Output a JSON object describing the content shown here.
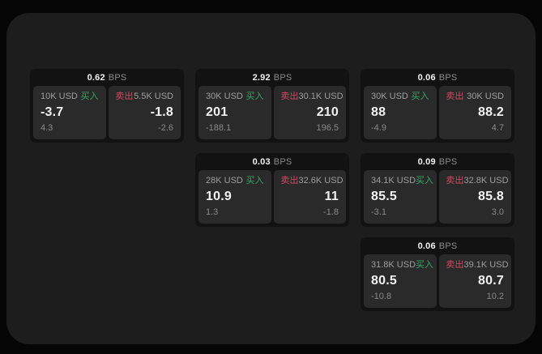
{
  "labels": {
    "bps_unit": "BPS",
    "buy": "买入",
    "sell": "卖出"
  },
  "colors": {
    "background": "#050505",
    "surface_bg": "#1d1d1d",
    "card_bg": "#121212",
    "tile_bg": "#2a2a2a",
    "buy_green": "#36a567",
    "sell_red": "#cc4a63",
    "value_white": "#f2f2f2",
    "muted_gray": "#9e9e9e",
    "faint_gray": "#8a8a8a"
  },
  "cards": [
    {
      "bps": "0.62",
      "buy": {
        "notional": "10K USD",
        "price": "-3.7",
        "delta": "4.3"
      },
      "sell": {
        "notional": "5.5K USD",
        "price": "-1.8",
        "delta": "-2.6"
      }
    },
    {
      "bps": "2.92",
      "buy": {
        "notional": "30K USD",
        "price": "201",
        "delta": "-188.1"
      },
      "sell": {
        "notional": "30.1K USD",
        "price": "210",
        "delta": "196.5"
      }
    },
    {
      "bps": "0.06",
      "buy": {
        "notional": "30K USD",
        "price": "88",
        "delta": "-4.9"
      },
      "sell": {
        "notional": "30K USD",
        "price": "88.2",
        "delta": "4.7"
      }
    },
    {
      "bps": "0.03",
      "buy": {
        "notional": "28K USD",
        "price": "10.9",
        "delta": "1.3"
      },
      "sell": {
        "notional": "32.6K USD",
        "price": "11",
        "delta": "-1.8"
      }
    },
    {
      "bps": "0.09",
      "buy": {
        "notional": "34.1K USD",
        "price": "85.5",
        "delta": "-3.1"
      },
      "sell": {
        "notional": "32.8K USD",
        "price": "85.8",
        "delta": "3.0"
      }
    },
    {
      "bps": "0.06",
      "buy": {
        "notional": "31.8K USD",
        "price": "80.5",
        "delta": "-10.8"
      },
      "sell": {
        "notional": "39.1K USD",
        "price": "80.7",
        "delta": "10.2"
      }
    }
  ]
}
